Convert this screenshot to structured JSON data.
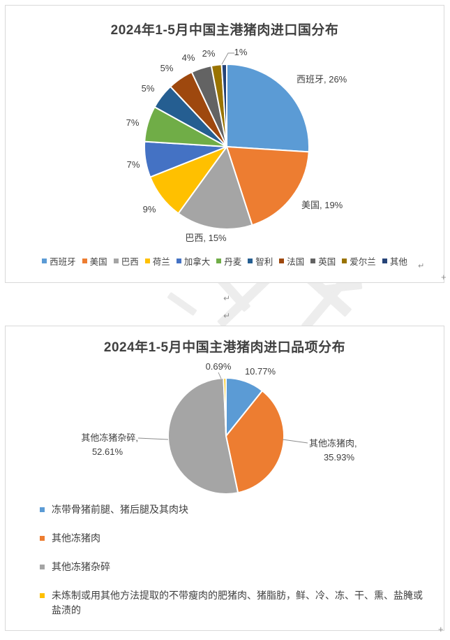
{
  "page": {
    "background": "#ffffff",
    "paragraph_mark": "↵",
    "anchor_mark": "+"
  },
  "chart_data": [
    {
      "type": "pie",
      "title": "2024年1-5月中国主港猪肉进口国分布",
      "value_unit": "percent",
      "legend_position": "bottom-row",
      "label_color": "#404040",
      "slices": [
        {
          "name": "西班牙",
          "value": 26,
          "label_lines": [
            "西班牙, 26%"
          ],
          "color": "#5B9BD5"
        },
        {
          "name": "美国",
          "value": 19,
          "label_lines": [
            "美国, 19%"
          ],
          "color": "#ED7D31"
        },
        {
          "name": "巴西",
          "value": 15,
          "label_lines": [
            "巴西, 15%"
          ],
          "color": "#A5A5A5"
        },
        {
          "name": "荷兰",
          "value": 9,
          "label_lines": [
            "9%"
          ],
          "color": "#FFC000"
        },
        {
          "name": "加拿大",
          "value": 7,
          "label_lines": [
            "7%"
          ],
          "color": "#4472C4"
        },
        {
          "name": "丹麦",
          "value": 7,
          "label_lines": [
            "7%"
          ],
          "color": "#70AD47"
        },
        {
          "name": "智利",
          "value": 5,
          "label_lines": [
            "5%"
          ],
          "color": "#255E91"
        },
        {
          "name": "法国",
          "value": 5,
          "label_lines": [
            "5%"
          ],
          "color": "#9E480E"
        },
        {
          "name": "英国",
          "value": 4,
          "label_lines": [
            "4%"
          ],
          "color": "#636363"
        },
        {
          "name": "爱尔兰",
          "value": 2,
          "label_lines": [
            "2%"
          ],
          "color": "#997300"
        },
        {
          "name": "其他",
          "value": 1,
          "label_lines": [
            "1%"
          ],
          "color": "#264478"
        }
      ]
    },
    {
      "type": "pie",
      "title": "2024年1-5月中国主港猪肉进口品项分布",
      "value_unit": "percent",
      "legend_position": "bottom-list",
      "label_color": "#404040",
      "slices": [
        {
          "name": "冻带骨猪前腿、猪后腿及其肉块",
          "value": 10.77,
          "label_lines": [
            "10.77%"
          ],
          "color": "#5B9BD5"
        },
        {
          "name": "其他冻猪肉",
          "value": 35.93,
          "label_lines": [
            "其他冻猪肉,",
            "35.93%"
          ],
          "color": "#ED7D31"
        },
        {
          "name": "其他冻猪杂碎",
          "value": 52.61,
          "label_lines": [
            "其他冻猪杂碎,",
            "52.61%"
          ],
          "color": "#A5A5A5"
        },
        {
          "name": "未炼制或用其他方法提取的不带瘦肉的肥猪肉、猪脂肪，鲜、冷、冻、干、熏、盐腌或盐渍的",
          "value": 0.69,
          "label_lines": [
            "0.69%"
          ],
          "color": "#FFC000"
        }
      ]
    }
  ]
}
